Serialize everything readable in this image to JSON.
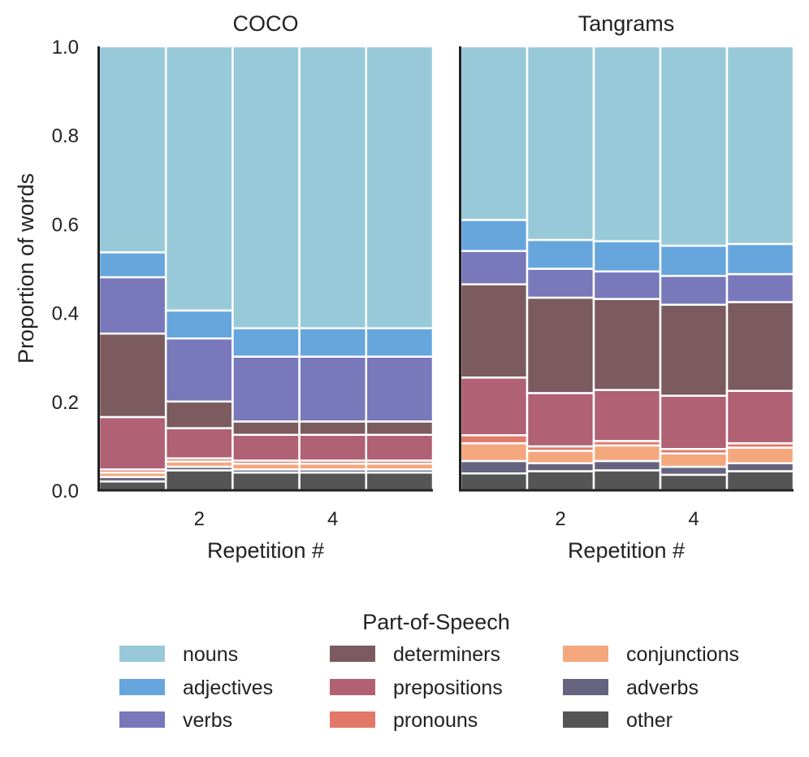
{
  "chart_data": {
    "type": "bar",
    "stacked": true,
    "ylabel": "Proportion of words",
    "ylim": [
      0,
      1
    ],
    "yticks": [
      "0.0",
      "0.2",
      "0.4",
      "0.6",
      "0.8",
      "1.0"
    ],
    "xlim": [
      0.5,
      5.5
    ],
    "xticks": [
      "2",
      "4"
    ],
    "legend": {
      "title": "Part-of-Speech",
      "position": "bottom-center",
      "entries": [
        "nouns",
        "adjectives",
        "verbs",
        "determiners",
        "prepositions",
        "pronouns",
        "conjunctions",
        "adverbs",
        "other"
      ]
    },
    "colors": {
      "nouns": "#98c9d8",
      "adjectives": "#66a6dd",
      "verbs": "#7878bb",
      "determiners": "#7b5b60",
      "prepositions": "#b06174",
      "pronouns": "#e17868",
      "conjunctions": "#f4a77d",
      "adverbs": "#65637d",
      "other": "#555555"
    },
    "panels": [
      {
        "title": "COCO",
        "xlabel": "Repetition #",
        "categories": [
          "1",
          "2",
          "3",
          "4",
          "5"
        ],
        "series": [
          {
            "name": "other",
            "values": [
              0.02,
              0.045,
              0.04,
              0.04,
              0.04
            ]
          },
          {
            "name": "adverbs",
            "values": [
              0.01,
              0.008,
              0.007,
              0.007,
              0.007
            ]
          },
          {
            "name": "conjunctions",
            "values": [
              0.01,
              0.012,
              0.013,
              0.013,
              0.013
            ]
          },
          {
            "name": "pronouns",
            "values": [
              0.007,
              0.007,
              0.007,
              0.007,
              0.007
            ]
          },
          {
            "name": "prepositions",
            "values": [
              0.118,
              0.068,
              0.058,
              0.058,
              0.058
            ]
          },
          {
            "name": "determiners",
            "values": [
              0.188,
              0.06,
              0.03,
              0.03,
              0.03
            ]
          },
          {
            "name": "verbs",
            "values": [
              0.127,
              0.142,
              0.146,
              0.146,
              0.146
            ]
          },
          {
            "name": "adjectives",
            "values": [
              0.056,
              0.063,
              0.064,
              0.064,
              0.064
            ]
          },
          {
            "name": "nouns",
            "values": [
              0.464,
              0.595,
              0.635,
              0.635,
              0.635
            ]
          }
        ]
      },
      {
        "title": "Tangrams",
        "xlabel": "Repetition #",
        "categories": [
          "1",
          "2",
          "3",
          "4",
          "5"
        ],
        "series": [
          {
            "name": "other",
            "values": [
              0.038,
              0.043,
              0.045,
              0.035,
              0.043
            ]
          },
          {
            "name": "adverbs",
            "values": [
              0.028,
              0.018,
              0.021,
              0.018,
              0.018
            ]
          },
          {
            "name": "conjunctions",
            "values": [
              0.04,
              0.028,
              0.035,
              0.03,
              0.035
            ]
          },
          {
            "name": "pronouns",
            "values": [
              0.018,
              0.01,
              0.01,
              0.01,
              0.01
            ]
          },
          {
            "name": "prepositions",
            "values": [
              0.13,
              0.12,
              0.115,
              0.12,
              0.118
            ]
          },
          {
            "name": "determiners",
            "values": [
              0.21,
              0.215,
              0.205,
              0.205,
              0.2
            ]
          },
          {
            "name": "verbs",
            "values": [
              0.075,
              0.065,
              0.062,
              0.065,
              0.063
            ]
          },
          {
            "name": "adjectives",
            "values": [
              0.07,
              0.065,
              0.068,
              0.068,
              0.068
            ]
          },
          {
            "name": "nouns",
            "values": [
              0.391,
              0.436,
              0.439,
              0.449,
              0.445
            ]
          }
        ]
      }
    ]
  }
}
